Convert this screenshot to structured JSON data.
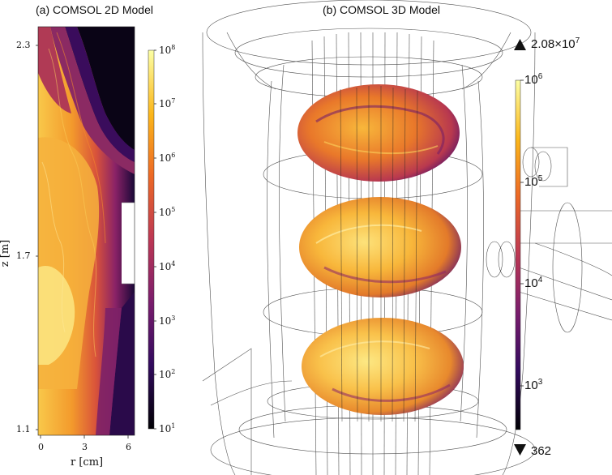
{
  "panel_a": {
    "title": "(a) COMSOL 2D Model",
    "ylabel": "z [m]",
    "xlabel": "r [cm]",
    "yticks": [
      "2.3",
      "1.7",
      "1.1"
    ],
    "xticks": [
      "0",
      "3",
      "6"
    ],
    "colorbar_ticks": [
      {
        "base": "10",
        "exp": "8"
      },
      {
        "base": "10",
        "exp": "7"
      },
      {
        "base": "10",
        "exp": "6"
      },
      {
        "base": "10",
        "exp": "5"
      },
      {
        "base": "10",
        "exp": "4"
      },
      {
        "base": "10",
        "exp": "3"
      },
      {
        "base": "10",
        "exp": "2"
      },
      {
        "base": "10",
        "exp": "1"
      }
    ]
  },
  "panel_b": {
    "title": "(b) COMSOL 3D Model",
    "max_label": "2.08×10",
    "max_exp": "7",
    "min_label": "362",
    "colorbar_ticks": [
      {
        "base": "10",
        "exp": "6"
      },
      {
        "base": "10",
        "exp": "5"
      },
      {
        "base": "10",
        "exp": "4"
      },
      {
        "base": "10",
        "exp": "3"
      }
    ]
  },
  "colormap": [
    "#000004",
    "#320a5e",
    "#781c6d",
    "#bc3754",
    "#ed6925",
    "#fbb61a",
    "#fcffa4"
  ]
}
